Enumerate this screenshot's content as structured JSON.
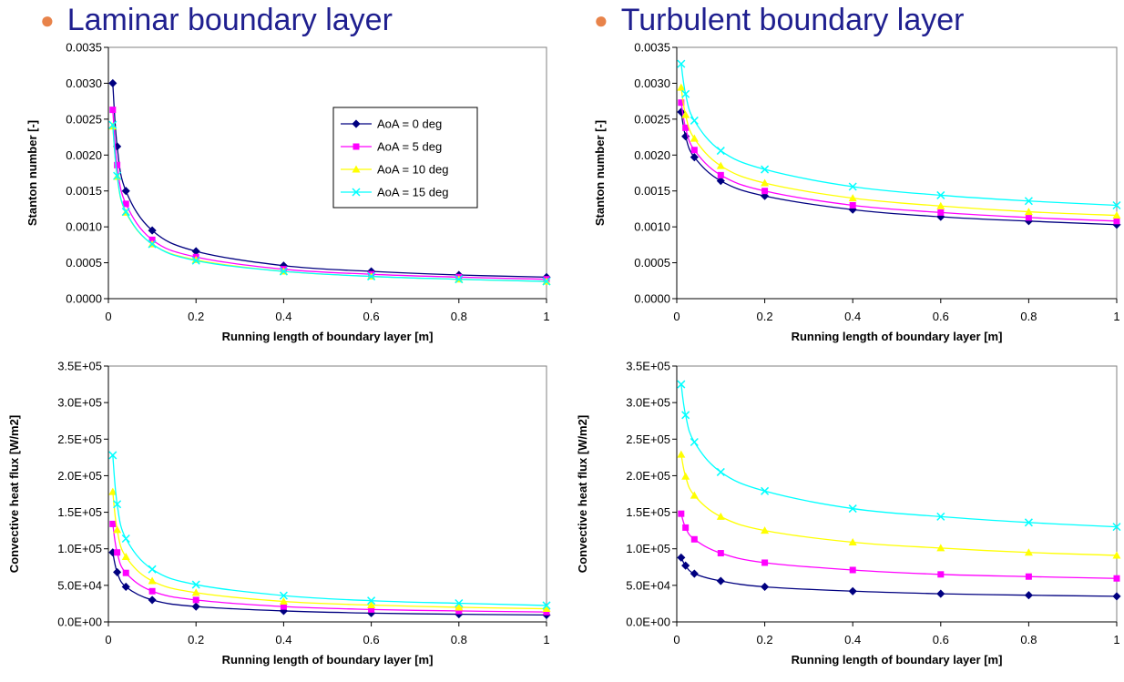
{
  "headings": {
    "left": "Laminar boundary layer",
    "right": "Turbulent boundary layer"
  },
  "series_styles": [
    {
      "name": "AoA = 0 deg",
      "color": "#000080",
      "marker": "diamond"
    },
    {
      "name": "AoA = 5 deg",
      "color": "#ff00ff",
      "marker": "square"
    },
    {
      "name": "AoA = 10 deg",
      "color": "#ffff00",
      "marker": "triangle"
    },
    {
      "name": "AoA = 15 deg",
      "color": "#00ffff",
      "marker": "x"
    }
  ],
  "chart_data": [
    {
      "id": "laminar-stanton",
      "type": "line",
      "title": "",
      "xlabel": "Running length of boundary layer [m]",
      "ylabel": "Stanton number [-]",
      "xlim": [
        0,
        1
      ],
      "ylim": [
        0,
        0.0035
      ],
      "xticks": [
        0,
        0.2,
        0.4,
        0.6,
        0.8,
        1
      ],
      "xtick_labels": [
        "0",
        "0.2",
        "0.4",
        "0.6",
        "0.8",
        "1"
      ],
      "yticks": [
        0,
        0.0005,
        0.001,
        0.0015,
        0.002,
        0.0025,
        0.003,
        0.0035
      ],
      "ytick_labels": [
        "0.0000",
        "0.0005",
        "0.0010",
        "0.0015",
        "0.0020",
        "0.0025",
        "0.0030",
        "0.0035"
      ],
      "legend": "inside-top-right",
      "grid": false,
      "x": [
        0.01,
        0.02,
        0.04,
        0.1,
        0.2,
        0.4,
        0.6,
        0.8,
        1.0
      ],
      "series": [
        {
          "name": "AoA = 0 deg",
          "values": [
            0.003,
            0.00212,
            0.0015,
            0.00095,
            0.00066,
            0.00046,
            0.00038,
            0.00033,
            0.0003
          ]
        },
        {
          "name": "AoA = 5 deg",
          "values": [
            0.00263,
            0.00186,
            0.00132,
            0.00082,
            0.00058,
            0.00041,
            0.00034,
            0.0003,
            0.00027
          ]
        },
        {
          "name": "AoA = 10 deg",
          "values": [
            0.0024,
            0.0017,
            0.0012,
            0.00076,
            0.00054,
            0.00038,
            0.00031,
            0.00027,
            0.00024
          ]
        },
        {
          "name": "AoA = 15 deg",
          "values": [
            0.00242,
            0.00171,
            0.00121,
            0.00076,
            0.00053,
            0.00038,
            0.00031,
            0.00027,
            0.00024
          ]
        }
      ]
    },
    {
      "id": "turbulent-stanton",
      "type": "line",
      "title": "",
      "xlabel": "Running length of boundary layer [m]",
      "ylabel": "Stanton number [-]",
      "xlim": [
        0,
        1
      ],
      "ylim": [
        0,
        0.0035
      ],
      "xticks": [
        0,
        0.2,
        0.4,
        0.6,
        0.8,
        1
      ],
      "xtick_labels": [
        "0",
        "0.2",
        "0.4",
        "0.6",
        "0.8",
        "1"
      ],
      "yticks": [
        0,
        0.0005,
        0.001,
        0.0015,
        0.002,
        0.0025,
        0.003,
        0.0035
      ],
      "ytick_labels": [
        "0.0000",
        "0.0005",
        "0.0010",
        "0.0015",
        "0.0020",
        "0.0025",
        "0.0030",
        "0.0035"
      ],
      "grid": false,
      "x": [
        0.01,
        0.02,
        0.04,
        0.1,
        0.2,
        0.4,
        0.6,
        0.8,
        1.0
      ],
      "series": [
        {
          "name": "AoA = 0 deg",
          "values": [
            0.0026,
            0.00226,
            0.00197,
            0.00164,
            0.00143,
            0.00124,
            0.00114,
            0.00108,
            0.00103
          ]
        },
        {
          "name": "AoA = 5 deg",
          "values": [
            0.00273,
            0.00238,
            0.00207,
            0.00172,
            0.0015,
            0.0013,
            0.0012,
            0.00113,
            0.00108
          ]
        },
        {
          "name": "AoA = 10 deg",
          "values": [
            0.00294,
            0.00256,
            0.00223,
            0.00185,
            0.00161,
            0.0014,
            0.00129,
            0.00121,
            0.00116
          ]
        },
        {
          "name": "AoA = 15 deg",
          "values": [
            0.00327,
            0.00285,
            0.00248,
            0.00206,
            0.0018,
            0.00156,
            0.00144,
            0.00136,
            0.0013
          ]
        }
      ]
    },
    {
      "id": "laminar-heatflux",
      "type": "line",
      "title": "",
      "xlabel": "Running length of boundary layer [m]",
      "ylabel": "Convective heat flux [W/m2]",
      "xlim": [
        0,
        1
      ],
      "ylim": [
        0,
        350000
      ],
      "xticks": [
        0,
        0.2,
        0.4,
        0.6,
        0.8,
        1
      ],
      "xtick_labels": [
        "0",
        "0.2",
        "0.4",
        "0.6",
        "0.8",
        "1"
      ],
      "yticks": [
        0,
        50000,
        100000,
        150000,
        200000,
        250000,
        300000,
        350000
      ],
      "ytick_labels": [
        "0.0E+00",
        "5.0E+04",
        "1.0E+05",
        "1.5E+05",
        "2.0E+05",
        "2.5E+05",
        "3.0E+05",
        "3.5E+05"
      ],
      "grid": false,
      "x": [
        0.01,
        0.02,
        0.04,
        0.1,
        0.2,
        0.4,
        0.6,
        0.8,
        1.0
      ],
      "series": [
        {
          "name": "AoA = 0 deg",
          "values": [
            95000,
            68000,
            48000,
            30000,
            21000,
            15000,
            12000,
            10500,
            9500
          ]
        },
        {
          "name": "AoA = 5 deg",
          "values": [
            134000,
            95000,
            67000,
            42000,
            30000,
            21000,
            17000,
            15000,
            13500
          ]
        },
        {
          "name": "AoA = 10 deg",
          "values": [
            178000,
            126000,
            89000,
            56000,
            40000,
            28000,
            23000,
            20000,
            18000
          ]
        },
        {
          "name": "AoA = 15 deg",
          "values": [
            228000,
            161000,
            114000,
            72000,
            51000,
            36000,
            29000,
            25500,
            22500
          ]
        }
      ]
    },
    {
      "id": "turbulent-heatflux",
      "type": "line",
      "title": "",
      "xlabel": "Running length of boundary layer [m]",
      "ylabel": "Convective heat flux [W/m2]",
      "xlim": [
        0,
        1
      ],
      "ylim": [
        0,
        350000
      ],
      "xticks": [
        0,
        0.2,
        0.4,
        0.6,
        0.8,
        1
      ],
      "xtick_labels": [
        "0",
        "0.2",
        "0.4",
        "0.6",
        "0.8",
        "1"
      ],
      "yticks": [
        0,
        50000,
        100000,
        150000,
        200000,
        250000,
        300000,
        350000
      ],
      "ytick_labels": [
        "0.0E+00",
        "5.0E+04",
        "1.0E+05",
        "1.5E+05",
        "2.0E+05",
        "2.5E+05",
        "3.0E+05",
        "3.5E+05"
      ],
      "grid": false,
      "x": [
        0.01,
        0.02,
        0.04,
        0.1,
        0.2,
        0.4,
        0.6,
        0.8,
        1.0
      ],
      "series": [
        {
          "name": "AoA = 0 deg",
          "values": [
            88000,
            77000,
            66000,
            56000,
            48000,
            42000,
            38500,
            36500,
            35000
          ]
        },
        {
          "name": "AoA = 5 deg",
          "values": [
            148000,
            129000,
            113000,
            94000,
            81000,
            71000,
            65000,
            62000,
            59500
          ]
        },
        {
          "name": "AoA = 10 deg",
          "values": [
            229000,
            199000,
            173000,
            144000,
            125000,
            109000,
            101000,
            95000,
            91000
          ]
        },
        {
          "name": "AoA = 15 deg",
          "values": [
            325000,
            283000,
            246000,
            205000,
            179000,
            155000,
            144000,
            136000,
            130000
          ]
        }
      ]
    }
  ]
}
